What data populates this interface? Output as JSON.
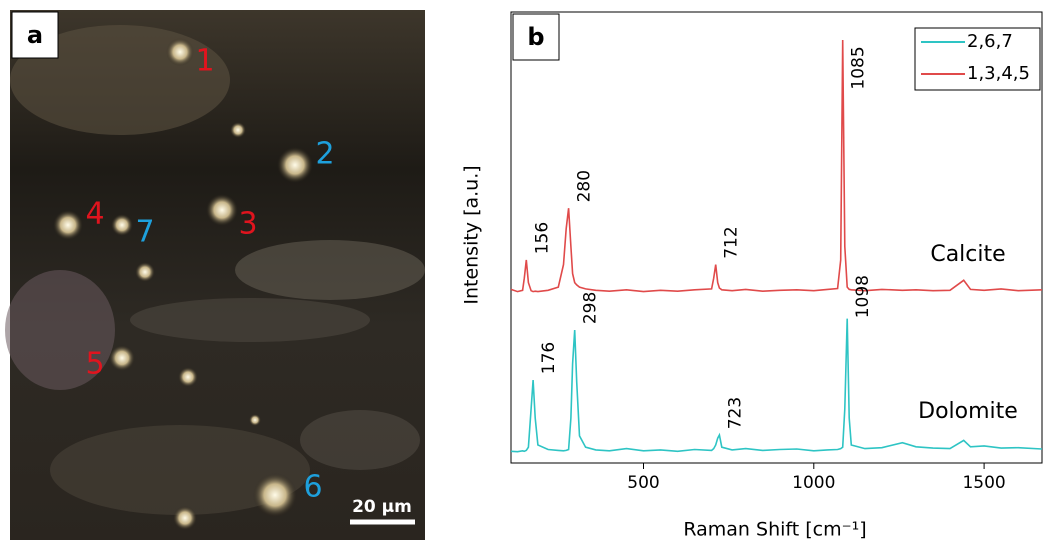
{
  "panel_a": {
    "label": "a",
    "markers": [
      "1",
      "2",
      "3",
      "4",
      "5",
      "6",
      "7"
    ],
    "scale_bar": "20 µm"
  },
  "chart_data": {
    "type": "line",
    "panel_label": "b",
    "x_label": "Raman Shift [cm⁻¹]",
    "y_label": "Intensity [a.u.]",
    "x": [
      111,
      130,
      145,
      150,
      156,
      162,
      170,
      176,
      182,
      190,
      220,
      250,
      265,
      273,
      280,
      287,
      292,
      298,
      304,
      312,
      330,
      360,
      400,
      450,
      500,
      550,
      600,
      650,
      700,
      706,
      712,
      718,
      723,
      730,
      760,
      800,
      850,
      900,
      950,
      1000,
      1040,
      1070,
      1079,
      1085,
      1091,
      1098,
      1104,
      1110,
      1150,
      1200,
      1260,
      1300,
      1350,
      1400,
      1440,
      1460,
      1500,
      1550,
      1600,
      1670
    ],
    "series": [
      {
        "name": "2,6,7",
        "color": "#2ec4c4",
        "values": [
          2.6,
          2.5,
          2.7,
          2.6,
          2.8,
          3.5,
          12,
          18.4,
          10,
          4,
          3,
          2.8,
          2.7,
          2.8,
          3,
          10,
          22,
          29.5,
          18,
          6,
          3.5,
          2.9,
          2.7,
          3.2,
          2.7,
          2.9,
          2.6,
          3,
          2.8,
          3.2,
          4,
          5.5,
          6.2,
          3.5,
          2.9,
          3.2,
          2.8,
          3,
          3.1,
          2.7,
          2.9,
          3,
          3.2,
          3.5,
          12,
          32,
          10,
          4,
          3.2,
          3.4,
          4.5,
          3.6,
          3.3,
          3.2,
          5,
          3.6,
          3.8,
          3.3,
          3.4,
          3.1
        ]
      },
      {
        "name": "1,3,4,5",
        "color": "#e04a4a",
        "values": [
          38.5,
          38,
          38.3,
          41,
          45,
          40,
          38.2,
          38,
          38.1,
          38,
          38.3,
          39,
          44,
          52,
          56.5,
          48,
          42,
          40,
          39.5,
          39,
          38.6,
          38.3,
          38.1,
          38.4,
          38,
          38.3,
          38.1,
          38.4,
          38.6,
          41,
          44,
          40,
          38.8,
          38.4,
          38.2,
          38.5,
          38.1,
          38.3,
          38.4,
          38.2,
          38.5,
          38.7,
          45,
          93.8,
          48,
          39,
          38.5,
          38.4,
          38.2,
          38.5,
          38.3,
          38.4,
          38.2,
          38.3,
          40.5,
          38.5,
          38.3,
          38.6,
          38.2,
          38.4
        ]
      }
    ],
    "annotations": [
      {
        "text": "156",
        "x": 156,
        "series": 1
      },
      {
        "text": "280",
        "x": 280,
        "series": 1
      },
      {
        "text": "712",
        "x": 712,
        "series": 1
      },
      {
        "text": "1085",
        "x": 1085,
        "series": 1
      },
      {
        "text": "176",
        "x": 176,
        "series": 0
      },
      {
        "text": "298",
        "x": 298,
        "series": 0
      },
      {
        "text": "723",
        "x": 723,
        "series": 0
      },
      {
        "text": "1098",
        "x": 1098,
        "series": 0
      }
    ],
    "series_labels": [
      "Dolomite",
      "Calcite"
    ],
    "xlim": [
      111,
      1670
    ],
    "ylim": [
      0,
      100
    ],
    "xticks": [
      500,
      1000,
      1500
    ],
    "legend": "upper right"
  }
}
